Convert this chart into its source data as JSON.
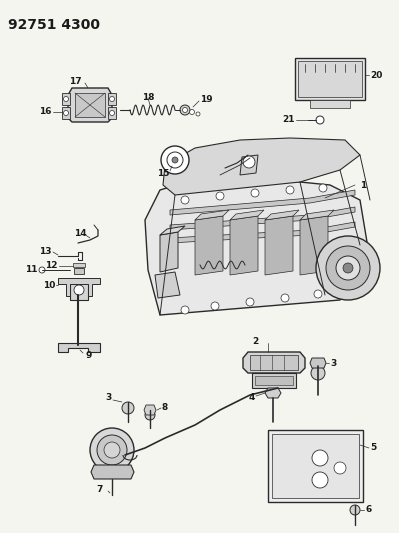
{
  "title": "92751 4300",
  "bg_color": "#f5f5f0",
  "line_color": "#2a2a2a",
  "label_color": "#1a1a1a",
  "label_fontsize": 6.5,
  "title_fontsize": 10,
  "fig_width": 3.99,
  "fig_height": 5.33,
  "dpi": 100
}
